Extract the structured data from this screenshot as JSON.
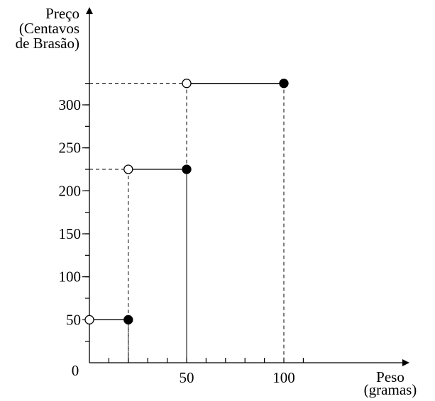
{
  "chart_data": {
    "type": "step",
    "title": "",
    "ylabel_lines": [
      "Preço",
      "(Centavos",
      "de Brasão)"
    ],
    "xlabel_lines": [
      "Peso",
      "(gramas)"
    ],
    "xlim": [
      0,
      160
    ],
    "ylim": [
      0,
      350
    ],
    "xticks": [
      50,
      100
    ],
    "yticks": [
      50,
      100,
      150,
      200,
      250,
      300
    ],
    "origin_label": "0",
    "segments": [
      {
        "x_start": 0,
        "x_end": 20,
        "y": 50
      },
      {
        "x_start": 20,
        "x_end": 50,
        "y": 225
      },
      {
        "x_start": 50,
        "x_end": 100,
        "y": 325
      }
    ],
    "open_point_side": "left",
    "closed_point_side": "right"
  }
}
